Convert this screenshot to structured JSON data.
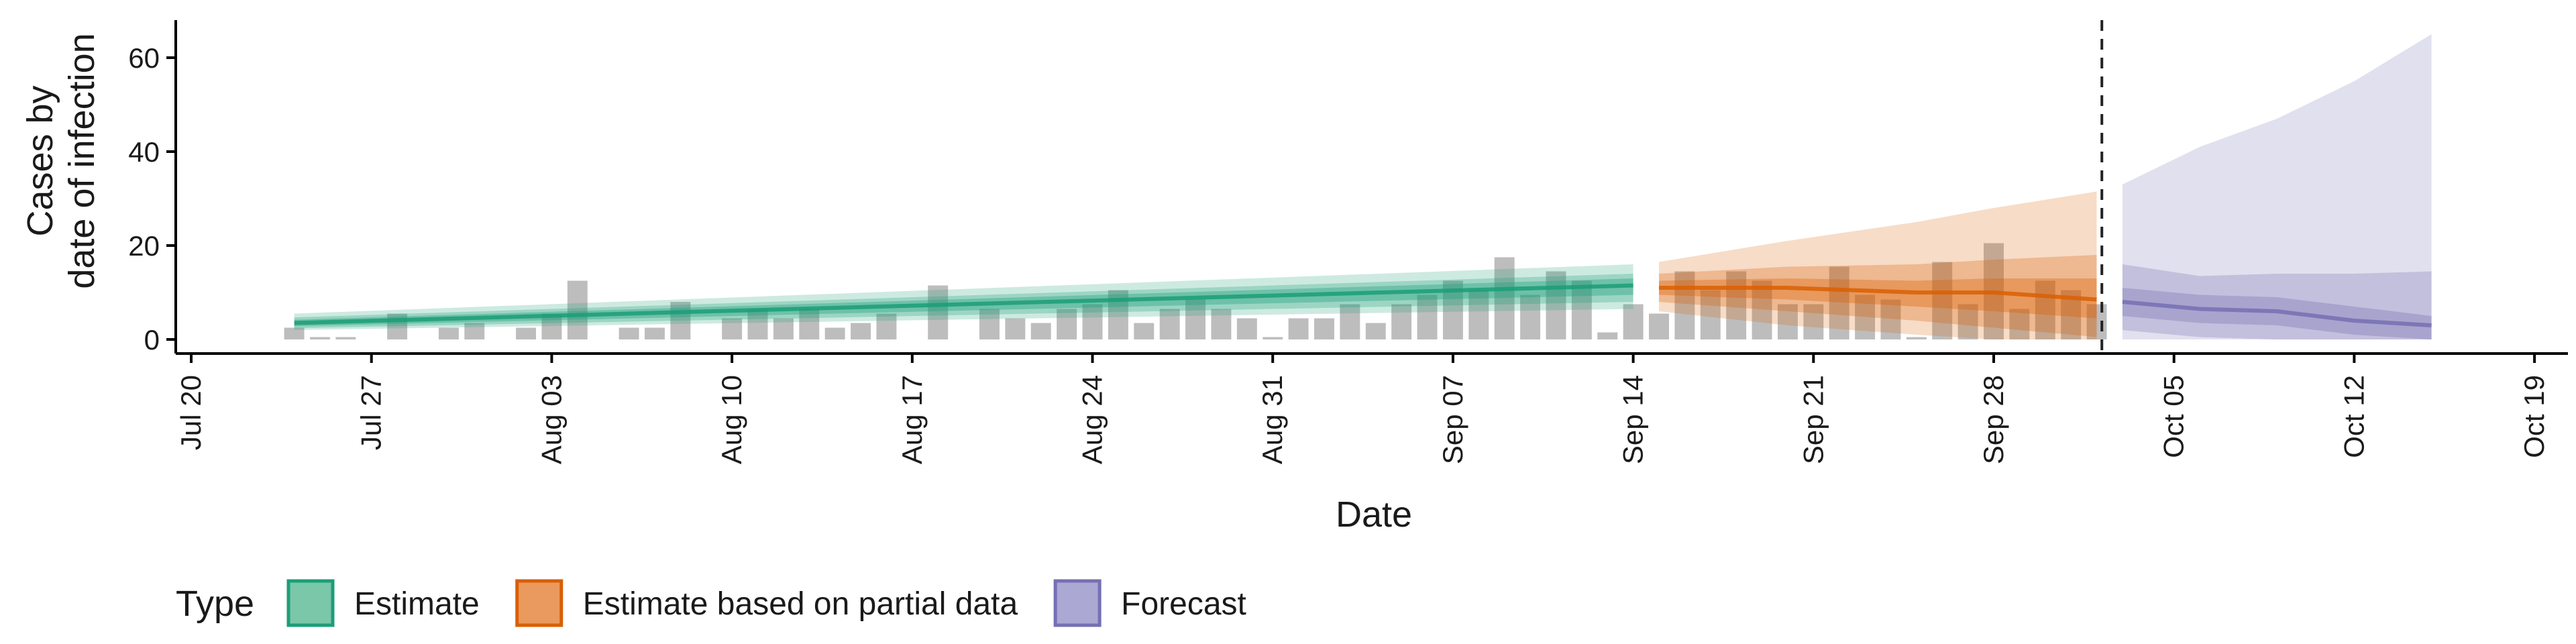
{
  "chart_data": {
    "type": "bar",
    "xlabel": "Date",
    "ylabel": [
      "Cases by",
      "date of infection"
    ],
    "ylim": [
      -3,
      68
    ],
    "yticks": [
      0,
      20,
      40,
      60
    ],
    "xticks": [
      {
        "day": 0,
        "label": "Jul 20"
      },
      {
        "day": 7,
        "label": "Jul 27"
      },
      {
        "day": 14,
        "label": "Aug 03"
      },
      {
        "day": 21,
        "label": "Aug 10"
      },
      {
        "day": 28,
        "label": "Aug 17"
      },
      {
        "day": 35,
        "label": "Aug 24"
      },
      {
        "day": 42,
        "label": "Aug 31"
      },
      {
        "day": 49,
        "label": "Sep 07"
      },
      {
        "day": 56,
        "label": "Sep 14"
      },
      {
        "day": 63,
        "label": "Sep 21"
      },
      {
        "day": 70,
        "label": "Sep 28"
      },
      {
        "day": 77,
        "label": "Oct 05"
      },
      {
        "day": 84,
        "label": "Oct 12"
      },
      {
        "day": 91,
        "label": "Oct 19"
      }
    ],
    "xlim_day": [
      -0.6,
      92.3
    ],
    "reference_line_day": 74.2,
    "bars_start_day": 4,
    "bar_values": [
      2.5,
      0.5,
      0.5,
      0,
      5.5,
      0,
      2.5,
      3.5,
      0,
      2.5,
      5.5,
      12.5,
      0,
      2.5,
      2.5,
      8,
      0,
      4.5,
      6.5,
      4.5,
      6.5,
      2.5,
      3.5,
      5.5,
      0,
      11.5,
      0,
      6.5,
      4.5,
      3.5,
      6.5,
      7.5,
      10.5,
      3.5,
      6.5,
      8.5,
      6.5,
      4.5,
      0.5,
      4.5,
      4.5,
      7.5,
      3.5,
      7.5,
      9.5,
      12.5,
      10.5,
      17.5,
      9.5,
      14.5,
      12.5,
      1.5,
      7.5,
      5.5,
      14.5,
      10.5,
      14.5,
      12.5,
      7.5,
      7.5,
      15.5,
      9.5,
      8.5,
      0.5,
      16.5,
      7.5,
      20.5,
      6.5,
      12.5,
      10.5,
      7.5
    ],
    "series": [
      {
        "name": "Estimate",
        "color": "#1B9E77",
        "days": [
          4,
          56
        ],
        "median": [
          3.5,
          11.5
        ],
        "inner": [
          [
            2.8,
            4.2
          ],
          [
            9.5,
            13.0
          ]
        ],
        "mid": [
          [
            2.4,
            4.7
          ],
          [
            8.0,
            14.0
          ]
        ],
        "outer": [
          [
            2.0,
            5.5
          ],
          [
            6.5,
            16.0
          ]
        ]
      },
      {
        "name": "Estimate based on partial data",
        "color": "#D95F02",
        "days": [
          57,
          62,
          67,
          70,
          74
        ],
        "median": [
          11.0,
          11.0,
          10.0,
          10.0,
          8.5
        ],
        "inner": [
          [
            9.5,
            12.5
          ],
          [
            8.5,
            13.0
          ],
          [
            7.0,
            12.5
          ],
          [
            6.0,
            13.0
          ],
          [
            4.5,
            13.0
          ]
        ],
        "mid": [
          [
            8.0,
            14.0
          ],
          [
            6.0,
            15.5
          ],
          [
            4.0,
            16.0
          ],
          [
            2.5,
            17.0
          ],
          [
            0.5,
            18.0
          ]
        ],
        "outer": [
          [
            6.0,
            16.5
          ],
          [
            3.0,
            21.0
          ],
          [
            1.0,
            25.0
          ],
          [
            0,
            28.0
          ],
          [
            0,
            31.5
          ]
        ]
      },
      {
        "name": "Forecast",
        "color": "#7570B3",
        "days": [
          75,
          78,
          81,
          84,
          87
        ],
        "median": [
          8.0,
          6.5,
          6.0,
          4.0,
          3.0
        ],
        "inner": [
          [
            5.0,
            11.0
          ],
          [
            3.5,
            9.5
          ],
          [
            3.0,
            9.0
          ],
          [
            1.0,
            7.0
          ],
          [
            0,
            5.0
          ]
        ],
        "mid": [
          [
            2.0,
            16.0
          ],
          [
            0.5,
            13.5
          ],
          [
            0,
            14.0
          ],
          [
            0,
            14.0
          ],
          [
            0,
            14.5
          ]
        ],
        "outer": [
          [
            0,
            33.0
          ],
          [
            0,
            41.0
          ],
          [
            0,
            47.0
          ],
          [
            0,
            55.0
          ],
          [
            0,
            65.0
          ]
        ]
      }
    ],
    "legend": {
      "title": "Type",
      "items": [
        {
          "label": "Estimate",
          "fill": "#7BC7A9",
          "stroke": "#1B9E77"
        },
        {
          "label": "Estimate based on partial data",
          "fill": "#EA9A5E",
          "stroke": "#D95F02"
        },
        {
          "label": "Forecast",
          "fill": "#ABA8D3",
          "stroke": "#7570B3"
        }
      ]
    },
    "legend_position": "bottom-left"
  }
}
